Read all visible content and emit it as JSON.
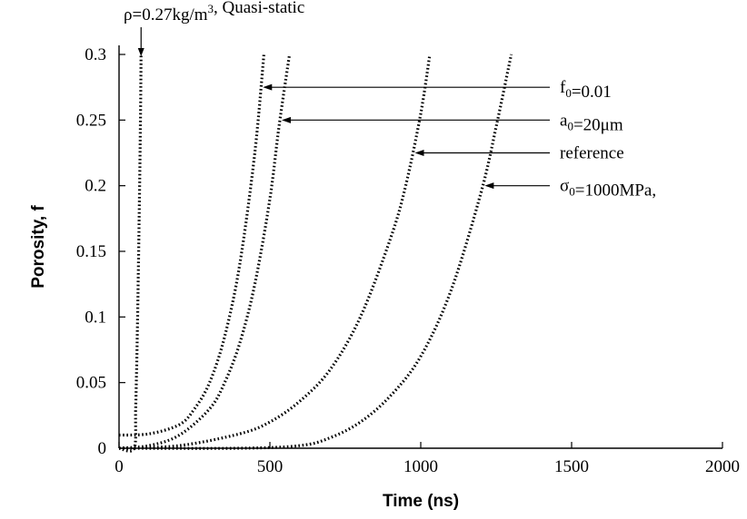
{
  "chart_data": {
    "type": "line",
    "xlabel": "Time (ns)",
    "ylabel": "Porosity, f",
    "xlim": [
      0,
      2000
    ],
    "ylim": [
      0,
      0.3
    ],
    "x_ticks": [
      0,
      500,
      1000,
      1500,
      2000
    ],
    "y_ticks": [
      0,
      0.05,
      0.1,
      0.15,
      0.2,
      0.25,
      0.3
    ],
    "x_tick_labels": [
      "0",
      "500",
      "1000",
      "1500",
      "2000"
    ],
    "y_tick_labels": [
      "0",
      "0.05",
      "0.1",
      "0.15",
      "0.2",
      "0.25",
      "0.3"
    ],
    "series": [
      {
        "label_parts": [
          {
            "t": "ρ=0.27kg/m"
          },
          {
            "t": "3",
            "sup": true
          },
          {
            "t": ", Quasi-static"
          }
        ],
        "x": [
          0,
          50,
          55,
          60,
          65,
          70,
          73
        ],
        "y": [
          0.0,
          0.0,
          0.03,
          0.08,
          0.15,
          0.23,
          0.3
        ]
      },
      {
        "label_parts": [
          {
            "t": "f"
          },
          {
            "t": "0",
            "sub": true
          },
          {
            "t": "=0.01"
          }
        ],
        "x": [
          0,
          100,
          200,
          250,
          300,
          350,
          400,
          450,
          480
        ],
        "y": [
          0.01,
          0.011,
          0.018,
          0.03,
          0.05,
          0.085,
          0.14,
          0.225,
          0.3
        ]
      },
      {
        "label_parts": [
          {
            "t": "a"
          },
          {
            "t": "0",
            "sub": true
          },
          {
            "t": "=20μm"
          }
        ],
        "x": [
          0,
          100,
          200,
          300,
          350,
          400,
          450,
          500,
          530,
          565
        ],
        "y": [
          0.0,
          0.002,
          0.01,
          0.03,
          0.05,
          0.08,
          0.125,
          0.19,
          0.245,
          0.3
        ]
      },
      {
        "label_parts": [
          {
            "t": "reference"
          }
        ],
        "x": [
          0,
          200,
          400,
          500,
          600,
          700,
          800,
          900,
          950,
          1000,
          1030
        ],
        "y": [
          0.0,
          0.002,
          0.011,
          0.02,
          0.036,
          0.06,
          0.1,
          0.16,
          0.2,
          0.255,
          0.3
        ]
      },
      {
        "label_parts": [
          {
            "t": "σ"
          },
          {
            "t": "0",
            "sub": true
          },
          {
            "t": "=1000MPa,"
          }
        ],
        "x": [
          0,
          400,
          600,
          700,
          800,
          900,
          1000,
          1100,
          1200,
          1250,
          1300
        ],
        "y": [
          0.0,
          0.0,
          0.002,
          0.008,
          0.02,
          0.04,
          0.07,
          0.12,
          0.195,
          0.245,
          0.3
        ]
      }
    ]
  }
}
